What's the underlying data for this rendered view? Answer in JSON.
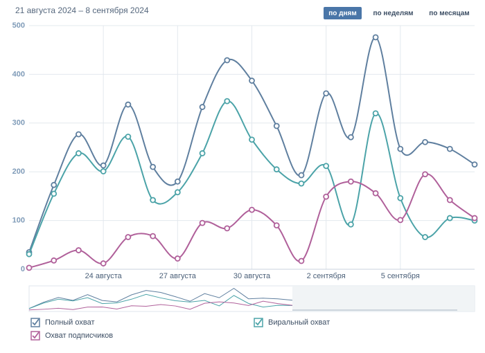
{
  "chart_data": {
    "type": "line",
    "subtitle": "21 августа 2024 – 8 сентября 2024",
    "buttons": [
      "по дням",
      "по неделям",
      "по месяцам"
    ],
    "active_button": 0,
    "x": [
      "2024-08-21",
      "2024-08-22",
      "2024-08-23",
      "2024-08-24",
      "2024-08-25",
      "2024-08-26",
      "2024-08-27",
      "2024-08-28",
      "2024-08-29",
      "2024-08-30",
      "2024-08-31",
      "2024-09-01",
      "2024-09-02",
      "2024-09-03",
      "2024-09-04",
      "2024-09-05",
      "2024-09-06",
      "2024-09-07",
      "2024-09-08"
    ],
    "xlim": [
      "2024-08-21",
      "2024-09-08"
    ],
    "xticks": [
      {
        "value": "2024-08-24",
        "label": "24 августа"
      },
      {
        "value": "2024-08-27",
        "label": "27 августа"
      },
      {
        "value": "2024-08-30",
        "label": "30 августа"
      },
      {
        "value": "2024-09-02",
        "label": "2 сентября"
      },
      {
        "value": "2024-09-05",
        "label": "5 сентября"
      }
    ],
    "ylim": [
      0,
      500
    ],
    "yticks": [
      0,
      100,
      200,
      300,
      400,
      500
    ],
    "grid": true,
    "series": [
      {
        "name": "Полный охват",
        "color": "#5f7f9f",
        "values": [
          35,
          173,
          277,
          213,
          338,
          210,
          180,
          333,
          429,
          387,
          294,
          193,
          361,
          271,
          476,
          247,
          261,
          247,
          215
        ]
      },
      {
        "name": "Виральный охват",
        "color": "#4ba3a8",
        "values": [
          31,
          155,
          238,
          201,
          272,
          142,
          158,
          238,
          345,
          266,
          205,
          176,
          212,
          92,
          320,
          146,
          66,
          105,
          100
        ]
      },
      {
        "name": "Охват подписчиков",
        "color": "#b0609a",
        "values": [
          3,
          18,
          39,
          12,
          66,
          68,
          22,
          95,
          84,
          122,
          90,
          17,
          149,
          180,
          156,
          101,
          195,
          142,
          105
        ]
      }
    ]
  }
}
